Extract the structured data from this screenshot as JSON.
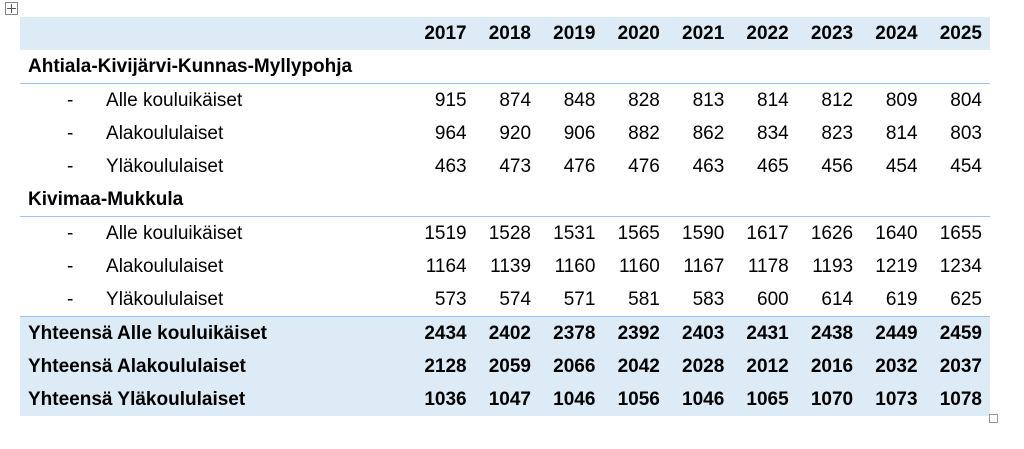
{
  "table": {
    "header": [
      "2017",
      "2018",
      "2019",
      "2020",
      "2021",
      "2022",
      "2023",
      "2024",
      "2025"
    ],
    "groups": [
      {
        "title": "Ahtiala-Kivijärvi-Kunnas-Myllypohja",
        "rows": [
          {
            "marker": "-",
            "label": "Alle kouluikäiset",
            "values": [
              915,
              874,
              848,
              828,
              813,
              814,
              812,
              809,
              804
            ]
          },
          {
            "marker": "-",
            "label": "Alakoululaiset",
            "values": [
              964,
              920,
              906,
              882,
              862,
              834,
              823,
              814,
              803
            ]
          },
          {
            "marker": "-",
            "label": "Yläkoululaiset",
            "values": [
              463,
              473,
              476,
              476,
              463,
              465,
              456,
              454,
              454
            ]
          }
        ]
      },
      {
        "title": "Kivimaa-Mukkula",
        "rows": [
          {
            "marker": "-",
            "label": "Alle kouluikäiset",
            "values": [
              1519,
              1528,
              1531,
              1565,
              1590,
              1617,
              1626,
              1640,
              1655
            ]
          },
          {
            "marker": "-",
            "label": "Alakoululaiset",
            "values": [
              1164,
              1139,
              1160,
              1160,
              1167,
              1178,
              1193,
              1219,
              1234
            ]
          },
          {
            "marker": "-",
            "label": "Yläkoululaiset",
            "values": [
              573,
              574,
              571,
              581,
              583,
              600,
              614,
              619,
              625
            ]
          }
        ]
      }
    ],
    "totals": [
      {
        "label": "Yhteensä Alle kouluikäiset",
        "values": [
          2434,
          2402,
          2378,
          2392,
          2403,
          2431,
          2438,
          2449,
          2459
        ]
      },
      {
        "label": "Yhteensä Alakoululaiset",
        "values": [
          2128,
          2059,
          2066,
          2042,
          2028,
          2012,
          2016,
          2032,
          2037
        ]
      },
      {
        "label": "Yhteensä Yläkoululaiset",
        "values": [
          1036,
          1047,
          1046,
          1056,
          1046,
          1065,
          1070,
          1073,
          1078
        ]
      }
    ]
  }
}
